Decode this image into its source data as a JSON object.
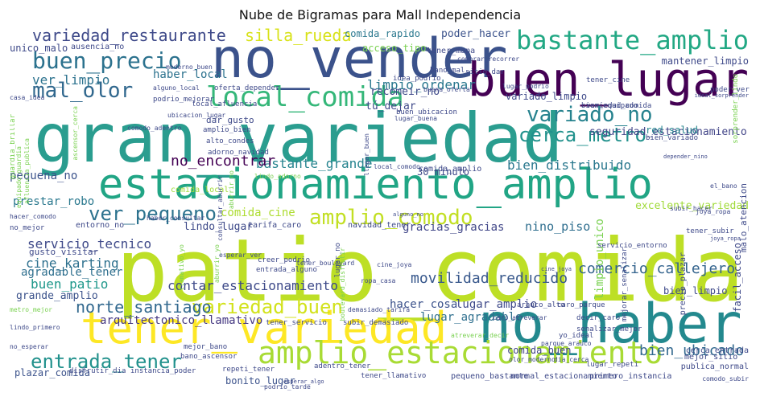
{
  "title": "Nube de Bigramas para Mall Independencia",
  "words": [
    {
      "text": "patio_comida",
      "color": "#bddf26"
    },
    {
      "text": "gran_variedad",
      "color": "#2a9d8f"
    },
    {
      "text": "estacionamiento_amplio",
      "color": "#21a585"
    },
    {
      "text": "no_vender",
      "color": "#3b528b"
    },
    {
      "text": "no_haber",
      "color": "#23898e"
    },
    {
      "text": "buen_lugar",
      "color": "#440154"
    },
    {
      "text": "tener_variedad",
      "color": "#fde725"
    },
    {
      "text": "amplio_estacionamiento",
      "color": "#a8db34"
    },
    {
      "text": "local_comida",
      "color": "#35b779"
    },
    {
      "text": "bastante_amplio",
      "color": "#22a884"
    },
    {
      "text": "buen_precio",
      "color": "#2c728e"
    },
    {
      "text": "variedad_restaurante",
      "color": "#3e4989"
    },
    {
      "text": "mal_olor",
      "color": "#31688e"
    },
    {
      "text": "variado_no",
      "color": "#26828e"
    },
    {
      "text": "cerca_metro",
      "color": "#21918c"
    },
    {
      "text": "ver_pequeno",
      "color": "#2c728e"
    },
    {
      "text": "amplio_comodo",
      "color": "#c2df23"
    },
    {
      "text": "entrada_tener",
      "color": "#21918c"
    },
    {
      "text": "variedad_buen",
      "color": "#d2e21b"
    },
    {
      "text": "norte_santiago",
      "color": "#31688e"
    },
    {
      "text": "silla_rueda",
      "color": "#d8e219"
    },
    {
      "text": "ver_limpio",
      "color": "#2c728e"
    },
    {
      "text": "limpio_ordenar",
      "color": "#2a788e"
    },
    {
      "text": "bastante_grande",
      "color": "#25838e"
    },
    {
      "text": "bien_distribuido",
      "color": "#2a788e"
    },
    {
      "text": "movilidad_reducido",
      "color": "#38588c"
    },
    {
      "text": "comercio_callejero",
      "color": "#33638d"
    },
    {
      "text": "no_encontrar",
      "color": "#440154"
    },
    {
      "text": "bien_ubicado",
      "color": "#31688e"
    },
    {
      "text": "contar_estacionamiento",
      "color": "#3e4a89"
    },
    {
      "text": "cine_karting",
      "color": "#2d708e"
    },
    {
      "text": "buen_patio",
      "color": "#1f988b"
    },
    {
      "text": "servicio_tecnico",
      "color": "#3e4989"
    },
    {
      "text": "arquitectonico_llamativo",
      "color": "#453882"
    },
    {
      "text": "comida_rapido",
      "color": "#2a788e"
    },
    {
      "text": "poder_hacer",
      "color": "#3b528b"
    },
    {
      "text": "haber_local",
      "color": "#2c728e"
    },
    {
      "text": "seguridad_estacionamiento",
      "color": "#414487"
    },
    {
      "text": "red_salud",
      "color": "#25848e"
    },
    {
      "text": "nino_piso",
      "color": "#2e6e8e"
    },
    {
      "text": "gracias_gracias",
      "color": "#404688"
    },
    {
      "text": "hacer_cosa",
      "color": "#3b528b"
    },
    {
      "text": "lugar_amplio",
      "color": "#3e4989"
    },
    {
      "text": "lugar_agradable",
      "color": "#2e6f8e"
    },
    {
      "text": "comida_buen",
      "color": "#414487"
    },
    {
      "text": "excelente_variedad",
      "color": "#a0da39"
    },
    {
      "text": "prestar_robo",
      "color": "#2a788e"
    },
    {
      "text": "agradable_tener",
      "color": "#2e6f8e"
    },
    {
      "text": "comida_cine",
      "color": "#addc30"
    },
    {
      "text": "pequena_no",
      "color": "#3b528b"
    },
    {
      "text": "lindo_lugar",
      "color": "#3e4a89"
    },
    {
      "text": "grande_amplio",
      "color": "#3b528b"
    },
    {
      "text": "bonito_lugar",
      "color": "#3b528b"
    },
    {
      "text": "plazar_comida",
      "color": "#3b528b"
    },
    {
      "text": "unico_malo",
      "color": "#3e4989"
    },
    {
      "text": "30_minuto",
      "color": "#3e4989"
    },
    {
      "text": "tú_dejar",
      "color": "#3e4989"
    },
    {
      "text": "recomeir_no",
      "color": "#3e4989"
    },
    {
      "text": "variado_limpio",
      "color": "#3e4989"
    },
    {
      "text": "bien_limpio",
      "color": "#3e4989"
    },
    {
      "text": "mantener_limpio",
      "color": "#3e4989"
    },
    {
      "text": "acceso_tipo",
      "color": "#7ad151"
    },
    {
      "text": "dar_gusto",
      "color": "#3e4989"
    },
    {
      "text": "tener_mapa",
      "color": "#3e4989"
    },
    {
      "text": "gusto_visitar",
      "color": "#3e4989"
    },
    {
      "text": "limpio_unico",
      "color": "#7ad151"
    },
    {
      "text": "normal_estacionamiento",
      "color": "#3e4989"
    },
    {
      "text": "primero_instancia",
      "color": "#3e4989"
    },
    {
      "text": "pequeno_bastante",
      "color": "#3e4989"
    },
    {
      "text": "tener_llamativo",
      "color": "#3e4989"
    },
    {
      "text": "adentro_tener",
      "color": "#3e4989"
    },
    {
      "text": "repeti_tener",
      "color": "#3e4989"
    },
    {
      "text": "mejor_sitio",
      "color": "#3e4989"
    },
    {
      "text": "publica_normal",
      "color": "#3e4989"
    },
    {
      "text": "cerca_entrada",
      "color": "#3e4989"
    },
    {
      "text": "facil_acceso",
      "color": "#3e4989"
    },
    {
      "text": "ausencia_no",
      "color": "#3e4989"
    },
    {
      "text": "entorno_no",
      "color": "#3e4989"
    },
    {
      "text": "no_mejor",
      "color": "#3e4989"
    },
    {
      "text": "comida_amplio",
      "color": "#3e4989"
    },
    {
      "text": "comida_local",
      "color": "#a0da39"
    },
    {
      "text": "tarifa_caro",
      "color": "#3e4989"
    },
    {
      "text": "navidad_tener",
      "color": "#3e4989"
    },
    {
      "text": "bien_equipado",
      "color": "#3e4989"
    },
    {
      "text": "bien_variado",
      "color": "#3e4989"
    },
    {
      "text": "variedad_comida",
      "color": "#3e4989"
    },
    {
      "text": "lugar_repeti",
      "color": "#3e4989"
    },
    {
      "text": "decir_caro",
      "color": "#3e4989"
    },
    {
      "text": "mejor_bano",
      "color": "#3e4989"
    },
    {
      "text": "bano_ascensor",
      "color": "#3e4989"
    },
    {
      "text": "instancia_poder",
      "color": "#3e4989"
    },
    {
      "text": "disfrutir_dia",
      "color": "#3e4989"
    },
    {
      "text": "tener_servicio",
      "color": "#3e4989"
    },
    {
      "text": "subir_demasiado",
      "color": "#3e4989"
    },
    {
      "text": "arauco_alto",
      "color": "#3e4989"
    },
    {
      "text": "caro_parque",
      "color": "#3e4989"
    },
    {
      "text": "yo_ideal",
      "color": "#3e4989"
    },
    {
      "text": "senalizar_mejor",
      "color": "#3e4989"
    },
    {
      "text": "mejorar_senalizar",
      "color": "#3e4989"
    },
    {
      "text": "creer_podrio",
      "color": "#3e4989"
    },
    {
      "text": "entrada_alguno",
      "color": "#3e4989"
    },
    {
      "text": "servicio_entorno",
      "color": "#3e4989"
    },
    {
      "text": "tener_subir",
      "color": "#3e4989"
    },
    {
      "text": "malo_atencion",
      "color": "#3e4989"
    },
    {
      "text": "precio_plazar",
      "color": "#3e4989"
    },
    {
      "text": "bano_mal",
      "color": "#3e4989"
    },
    {
      "text": "buen_ubicacion",
      "color": "#3e4989"
    },
    {
      "text": "alto_condes",
      "color": "#3e4989"
    },
    {
      "text": "amplio_bien",
      "color": "#3e4989"
    },
    {
      "text": "adorno_navidad",
      "color": "#3e4989"
    },
    {
      "text": "local_afluencia",
      "color": "#3e4989"
    },
    {
      "text": "podrio_mejorar",
      "color": "#3e4989"
    },
    {
      "text": "oferta_depender",
      "color": "#3e4989"
    },
    {
      "text": "idea_podrio",
      "color": "#3e4989"
    },
    {
      "text": "sitio_dar",
      "color": "#3e4989"
    },
    {
      "text": "tener_cine",
      "color": "#3e4989"
    },
    {
      "text": "comprar_recorrer",
      "color": "#3e4989"
    },
    {
      "text": "hacer_comodo",
      "color": "#3e4989"
    },
    {
      "text": "lindo_primero",
      "color": "#3e4989"
    },
    {
      "text": "no_esperar",
      "color": "#3e4989"
    },
    {
      "text": "caro_atreverar",
      "color": "#3e4989"
    },
    {
      "text": "olor_moderno",
      "color": "#3e4989"
    },
    {
      "text": "dia_cerca",
      "color": "#3e4989"
    },
    {
      "text": "parque_arauco",
      "color": "#3e4989"
    },
    {
      "text": "comodo_subir",
      "color": "#3e4989"
    },
    {
      "text": "guardia_brillar",
      "color": "#7ad151"
    },
    {
      "text": "sorprender_lindo",
      "color": "#7ad151"
    },
    {
      "text": "poder_ver",
      "color": "#3e4989"
    },
    {
      "text": "haber_consultar",
      "color": "#3e4989"
    },
    {
      "text": "lugar_podrio",
      "color": "#3e4989"
    },
    {
      "text": "joya_ropa",
      "color": "#3e4989"
    },
    {
      "text": "tener_boulevard",
      "color": "#3e4989"
    },
    {
      "text": "esperar_ver",
      "color": "#3e4989"
    },
    {
      "text": "ropa_casa",
      "color": "#3e4989"
    },
    {
      "text": "podrio_tarde",
      "color": "#3e4989"
    },
    {
      "text": "demasiado_tarifa",
      "color": "#3e4989"
    },
    {
      "text": "comodo_adentro",
      "color": "#3e4989"
    },
    {
      "text": "moderno_buen",
      "color": "#3e4989"
    },
    {
      "text": "alguno_local",
      "color": "#3e4989"
    },
    {
      "text": "buena_oferta",
      "color": "#3e4989"
    },
    {
      "text": "ascensor_cerca",
      "color": "#7ad151"
    },
    {
      "text": "afluencia_publica",
      "color": "#7ad151"
    },
    {
      "text": "equipado_guardia",
      "color": "#7ad151"
    },
    {
      "text": "lindo_adorno",
      "color": "#7ad151"
    },
    {
      "text": "cine_joya",
      "color": "#3e4989"
    },
    {
      "text": "aburrir_no",
      "color": "#7ad151"
    },
    {
      "text": "local_comodo",
      "color": "#3e4989"
    },
    {
      "text": "lugar_buena",
      "color": "#3e4989"
    },
    {
      "text": "ubicacion_lugar",
      "color": "#3e4989"
    },
    {
      "text": "casa_idea",
      "color": "#3e4989"
    },
    {
      "text": "metro_mejor",
      "color": "#7ad151"
    },
    {
      "text": "atreverar_decir",
      "color": "#7ad151"
    },
    {
      "text": "boulevard_disfrutir",
      "color": "#7ad151"
    },
    {
      "text": "llamativo_yo",
      "color": "#7ad151"
    },
    {
      "text": "subir_hacer",
      "color": "#3e4989"
    },
    {
      "text": "el_bano",
      "color": "#3e4989"
    },
    {
      "text": "consultar_aburrir",
      "color": "#3e4989"
    },
    {
      "text": "aburrir_yo",
      "color": "#7ad151"
    },
    {
      "text": "ideal_sorprender",
      "color": "#3e4989"
    },
    {
      "text": "alguno_no",
      "color": "#3e4989"
    },
    {
      "text": "depender_nino",
      "color": "#3e4989"
    },
    {
      "text": "esperar_algo",
      "color": "#3e4989"
    },
    {
      "text": "llegar_buen",
      "color": "#3e4989"
    },
    {
      "text": "lugar_no",
      "color": "#3e4989"
    },
    {
      "text": "cine_joya",
      "color": "#3e4989"
    },
    {
      "text": "joya_ropa",
      "color": "#3e4989"
    }
  ]
}
